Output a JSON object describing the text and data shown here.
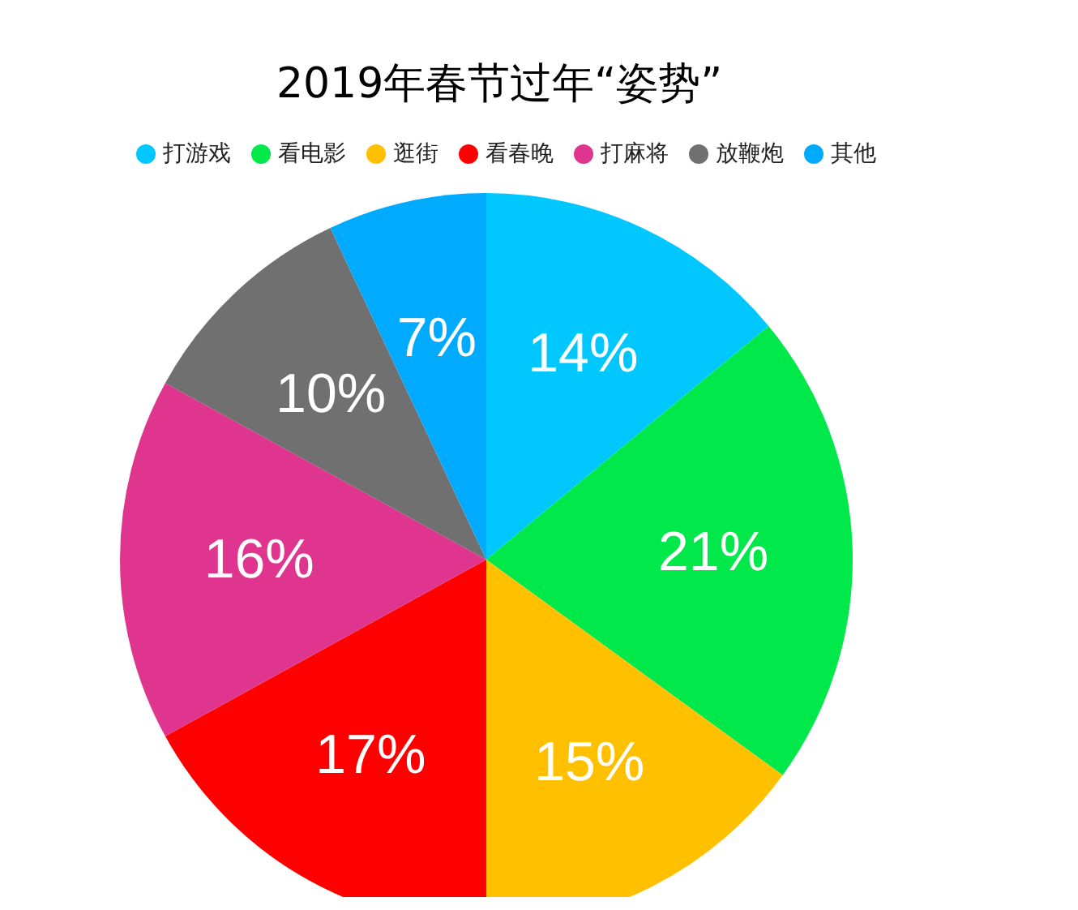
{
  "chart_data": {
    "type": "pie",
    "title": "2019年春节过年“姿势”",
    "categories": [
      "打游戏",
      "看电影",
      "逛街",
      "看春晚",
      "打麻将",
      "放鞭炮",
      "其他"
    ],
    "values": [
      14,
      21,
      15,
      17,
      16,
      10,
      7
    ],
    "colors": [
      "#00c8ff",
      "#00e84a",
      "#ffc000",
      "#ff0000",
      "#e0358f",
      "#707070",
      "#00aaff"
    ],
    "value_labels": [
      "14%",
      "21%",
      "15%",
      "17%",
      "16%",
      "10%",
      "7%"
    ],
    "legend": "top"
  }
}
